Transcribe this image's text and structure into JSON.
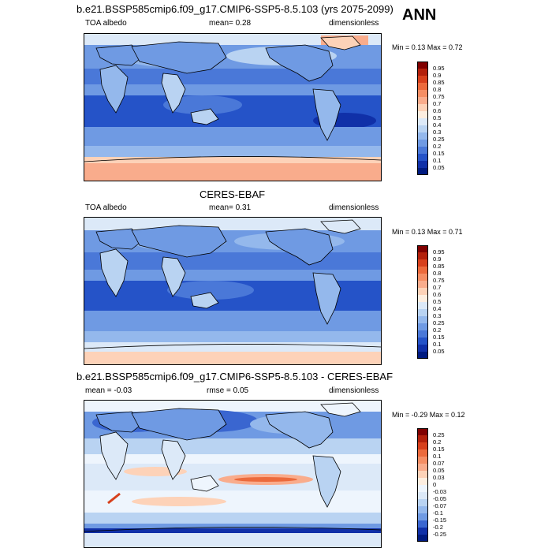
{
  "season": "ANN",
  "panels": [
    {
      "title": "b.e21.BSSP585cmip6.f09_g17.CMIP6-SSP5-8.5.103 (yrs 2075-2099)",
      "left": "TOA albedo",
      "center": "mean=  0.28",
      "right": "dimensionless",
      "minmax": "Min =  0.13 Max =  0.72",
      "colorbar": {
        "labels": [
          "0.95",
          "0.9",
          "0.85",
          "0.8",
          "0.75",
          "0.7",
          "0.6",
          "0.5",
          "0.4",
          "0.3",
          "0.25",
          "0.2",
          "0.15",
          "0.1",
          "0.05"
        ],
        "colors": [
          "#800000",
          "#b3200b",
          "#d7401c",
          "#ec6a3c",
          "#f58e64",
          "#f9ac8c",
          "#fdd2b8",
          "#fdeee0",
          "#dce9f8",
          "#b9d3f2",
          "#94b8ec",
          "#6f9ae3",
          "#4a78d8",
          "#2553c8",
          "#1030a8",
          "#001a80"
        ]
      }
    },
    {
      "title": "CERES-EBAF",
      "left": "TOA albedo",
      "center": "mean=  0.31",
      "right": "dimensionless",
      "minmax": "Min =  0.13 Max =  0.71",
      "colorbar": {
        "labels": [
          "0.95",
          "0.9",
          "0.85",
          "0.8",
          "0.75",
          "0.7",
          "0.6",
          "0.5",
          "0.4",
          "0.3",
          "0.25",
          "0.2",
          "0.15",
          "0.1",
          "0.05"
        ],
        "colors": [
          "#800000",
          "#b3200b",
          "#d7401c",
          "#ec6a3c",
          "#f58e64",
          "#f9ac8c",
          "#fdd2b8",
          "#fdeee0",
          "#dce9f8",
          "#b9d3f2",
          "#94b8ec",
          "#6f9ae3",
          "#4a78d8",
          "#2553c8",
          "#1030a8",
          "#001a80"
        ]
      }
    },
    {
      "title": "b.e21.BSSP585cmip6.f09_g17.CMIP6-SSP5-8.5.103 - CERES-EBAF",
      "left": "mean =  -0.03",
      "center": "rmse =  0.05",
      "right": "dimensionless",
      "minmax": "Min = -0.29 Max =  0.12",
      "colorbar": {
        "labels": [
          "0.25",
          "0.2",
          "0.15",
          "0.1",
          "0.07",
          "0.05",
          "0.03",
          "0",
          "-0.03",
          "-0.05",
          "-0.07",
          "-0.1",
          "-0.15",
          "-0.2",
          "-0.25"
        ],
        "colors": [
          "#800000",
          "#b3200b",
          "#d7401c",
          "#ec6a3c",
          "#f58e64",
          "#f9ac8c",
          "#fdd2b8",
          "#fdeee0",
          "#eef5fd",
          "#dce9f8",
          "#b9d3f2",
          "#94b8ec",
          "#6f9ae3",
          "#3a66d0",
          "#1030a8",
          "#001a80"
        ]
      }
    }
  ]
}
